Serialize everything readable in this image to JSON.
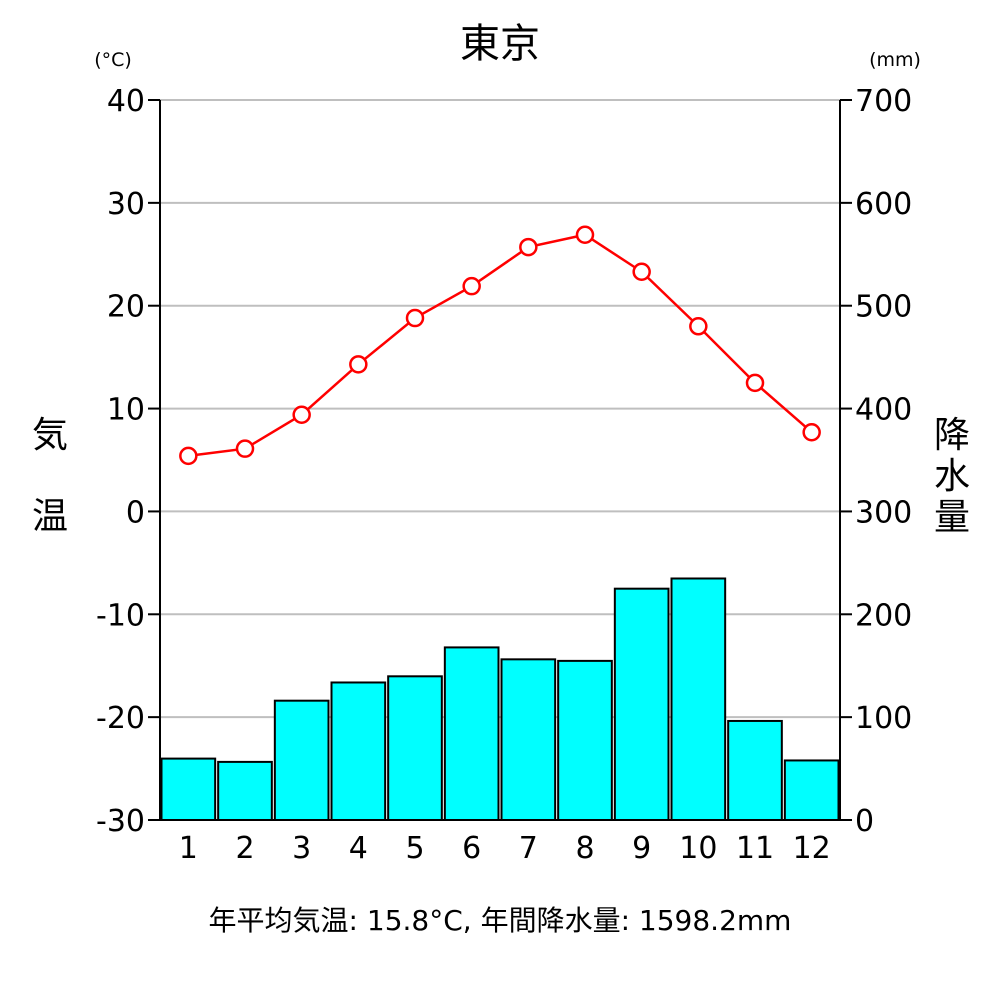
{
  "chart_data": {
    "type": "bar+line",
    "title": "東京",
    "categories": [
      "1",
      "2",
      "3",
      "4",
      "5",
      "6",
      "7",
      "8",
      "9",
      "10",
      "11",
      "12"
    ],
    "left_axis": {
      "unit": "(°C)",
      "label_chars": [
        "気",
        "温"
      ],
      "ylim": [
        -30,
        40
      ],
      "ticks": [
        40,
        30,
        20,
        10,
        0,
        -10,
        -20,
        -30
      ]
    },
    "right_axis": {
      "unit": "(mm)",
      "label_chars": [
        "降",
        "水",
        "量"
      ],
      "ylim": [
        0,
        700
      ],
      "ticks": [
        700,
        600,
        500,
        400,
        300,
        200,
        100,
        0
      ]
    },
    "grid": true,
    "series": [
      {
        "type": "line",
        "axis": "left",
        "color": "#ff0000",
        "values": [
          5.4,
          6.1,
          9.4,
          14.3,
          18.8,
          21.9,
          25.7,
          26.9,
          23.3,
          18.0,
          12.5,
          7.7
        ]
      },
      {
        "type": "bar",
        "axis": "right",
        "color": "#00ffff",
        "values": [
          59.7,
          56.5,
          116.0,
          133.7,
          139.7,
          167.8,
          156.2,
          154.7,
          224.9,
          234.8,
          96.3,
          57.9
        ]
      }
    ]
  },
  "footer": "年平均気温: 15.8°C,   年間降水量: 1598.2mm"
}
